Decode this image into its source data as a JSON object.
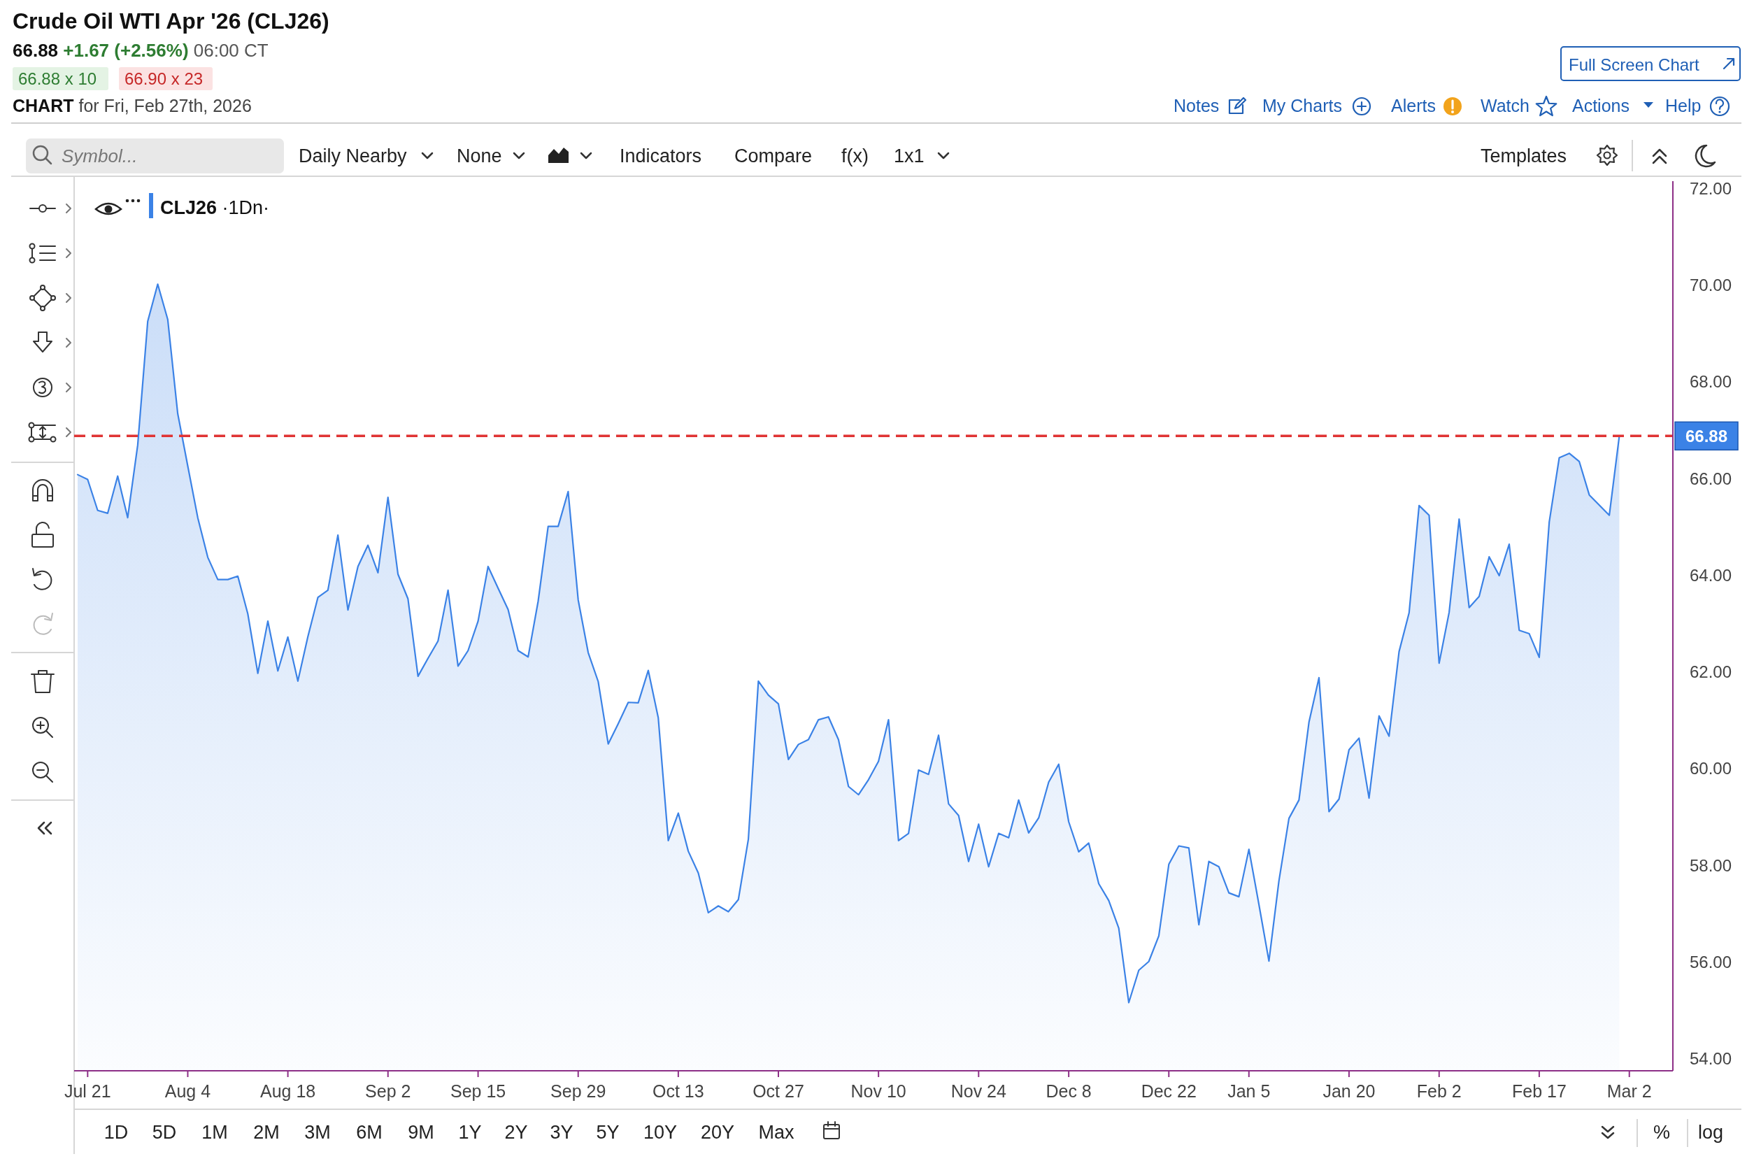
{
  "chart_data": {
    "type": "area",
    "title": "Crude Oil WTI Apr '26 (CLJ26)",
    "subtitle": "66.88 +1.67 (+2.56%) 06:00 CT",
    "annotations": [
      "66.88 x 10",
      "66.90 x 23",
      "CHART for Fri, Feb 27th, 2026",
      "Full Screen Chart",
      "Notes",
      "My Charts",
      "Alerts",
      "Watch",
      "Actions",
      "Help",
      "Symbol...",
      "Daily Nearby",
      "None",
      "Indicators",
      "Compare",
      "f(x)",
      "1x1",
      "Templates",
      "1D",
      "5D",
      "1M",
      "2M",
      "3M",
      "6M",
      "9M",
      "1Y",
      "2Y",
      "3Y",
      "5Y",
      "10Y",
      "20Y",
      "Max",
      "%",
      "log"
    ],
    "categories": [
      null,
      "Jul 21",
      null,
      null,
      null,
      null,
      null,
      null,
      null,
      null,
      null,
      "Aug 4",
      null,
      null,
      null,
      null,
      null,
      null,
      null,
      null,
      null,
      "Aug 18",
      null,
      null,
      null,
      null,
      null,
      null,
      null,
      null,
      null,
      "Sep 2",
      null,
      null,
      null,
      null,
      null,
      null,
      null,
      null,
      "Sep 15",
      null,
      null,
      null,
      null,
      null,
      null,
      null,
      null,
      null,
      "Sep 29",
      null,
      null,
      null,
      null,
      null,
      null,
      null,
      null,
      null,
      "Oct 13",
      null,
      null,
      null,
      null,
      null,
      null,
      null,
      null,
      null,
      "Oct 27",
      null,
      null,
      null,
      null,
      null,
      null,
      null,
      null,
      null,
      "Nov 10",
      null,
      null,
      null,
      null,
      null,
      null,
      null,
      null,
      null,
      "Nov 24",
      null,
      null,
      null,
      null,
      null,
      null,
      null,
      null,
      "Dec 8",
      null,
      null,
      null,
      null,
      null,
      null,
      null,
      null,
      null,
      "Dec 22",
      null,
      null,
      null,
      null,
      null,
      null,
      null,
      "Jan 5",
      null,
      null,
      null,
      null,
      null,
      null,
      null,
      null,
      null,
      "Jan 20",
      null,
      null,
      null,
      null,
      null,
      null,
      null,
      null,
      "Feb 2",
      null,
      null,
      null,
      null,
      null,
      null,
      null,
      null,
      null,
      "Feb 17",
      null,
      null,
      null,
      null,
      null,
      null,
      null,
      null,
      "Mar 2",
      null,
      null,
      null,
      null
    ],
    "series": [
      {
        "name": "CLJ26 ·1Dn·",
        "color": "#3b82e6",
        "values": [
          66.08,
          65.98,
          65.34,
          65.28,
          66.05,
          65.19,
          66.69,
          69.25,
          70.02,
          69.29,
          67.34,
          66.26,
          65.19,
          64.37,
          63.91,
          63.91,
          63.98,
          63.2,
          61.97,
          63.05,
          62.02,
          62.72,
          61.81,
          62.73,
          63.54,
          63.69,
          64.83,
          63.28,
          64.18,
          64.62,
          64.05,
          65.61,
          64.02,
          63.51,
          61.91,
          62.28,
          62.64,
          63.69,
          62.12,
          62.44,
          63.05,
          64.18,
          63.73,
          63.29,
          62.44,
          62.31,
          63.46,
          65.01,
          65.01,
          65.73,
          63.49,
          62.4,
          61.8,
          60.51,
          60.93,
          61.37,
          61.36,
          62.03,
          61.05,
          58.51,
          59.08,
          58.29,
          57.84,
          57.02,
          57.16,
          57.04,
          57.29,
          58.54,
          61.81,
          61.52,
          61.34,
          60.19,
          60.5,
          60.6,
          61.01,
          61.07,
          60.6,
          59.63,
          59.46,
          59.77,
          60.15,
          61.01,
          58.51,
          58.66,
          59.97,
          59.88,
          60.69,
          59.27,
          59.03,
          58.08,
          58.85,
          57.97,
          58.66,
          58.57,
          59.35,
          58.67,
          58.98,
          59.72,
          60.09,
          58.9,
          58.28,
          58.46,
          57.62,
          57.27,
          56.7,
          55.16,
          55.83,
          56.01,
          56.54,
          58.02,
          58.4,
          58.36,
          56.77,
          58.08,
          57.97,
          57.43,
          57.35,
          58.33,
          57.19,
          56.02,
          57.68,
          58.97,
          59.35,
          60.96,
          61.88,
          59.11,
          59.37,
          60.39,
          60.63,
          59.39,
          61.09,
          60.67,
          62.42,
          63.22,
          65.44,
          65.24,
          62.18,
          63.23,
          65.16,
          63.33,
          63.56,
          64.38,
          63.99,
          64.64,
          62.86,
          62.79,
          62.3,
          65.1,
          66.43,
          66.52,
          66.35,
          65.66,
          65.45,
          65.24,
          66.88,
          null,
          null,
          null,
          null,
          null
        ]
      }
    ],
    "ylim": [
      53.75,
      72.15
    ],
    "yticks": [
      {
        "value": 54,
        "label": "54.00"
      },
      {
        "value": 56,
        "label": "56.00"
      },
      {
        "value": 58,
        "label": "58.00"
      },
      {
        "value": 60,
        "label": "60.00"
      },
      {
        "value": 62,
        "label": "62.00"
      },
      {
        "value": 64,
        "label": "64.00"
      },
      {
        "value": 66,
        "label": "66.00"
      },
      {
        "value": 68,
        "label": "68.00"
      },
      {
        "value": 70,
        "label": "70.00"
      },
      {
        "value": 72,
        "label": "72.00"
      }
    ],
    "ref_lines": [
      {
        "axis": "y",
        "value": 66.88,
        "label": "66.88",
        "color": "#e03434",
        "line_style": "dashed"
      }
    ],
    "legend": "top left"
  }
}
